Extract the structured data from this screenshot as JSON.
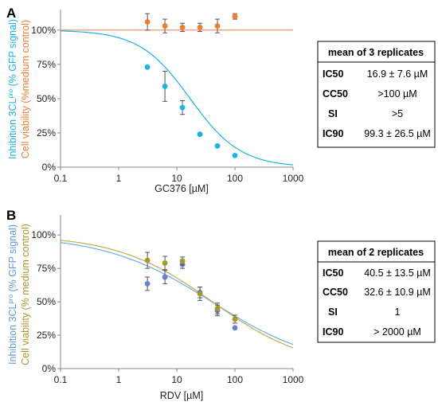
{
  "colors": {
    "inhibition_A": "#1ab4e0",
    "viability_A": "#ed7d31",
    "inhibition_B": "#6c7ed0",
    "viability_B": "#a8962b",
    "fit_B_inhibition": "#6aaee8",
    "fit_B_viability": "#bfae4a",
    "reference_line": "#f08c58",
    "error_bar": "#555555",
    "axis": "#888888"
  },
  "chart_data": [
    {
      "type": "scatter",
      "panel": "A",
      "xlabel": "GC376 [µM]",
      "ylabel_inhibition": "Inhibition 3CL",
      "ylabel_sup": "pro",
      "ylabel_inhibition_tail": " (% GFP signal)",
      "ylabel_viability": "Cell viability  (%medium control)",
      "x_scale": "log",
      "xlim": [
        0.1,
        1000
      ],
      "ylim": [
        0,
        115
      ],
      "x_ticks": [
        {
          "v": 0.1,
          "label": "0.1"
        },
        {
          "v": 1,
          "label": "1"
        },
        {
          "v": 10,
          "label": "10"
        },
        {
          "v": 100,
          "label": "100"
        },
        {
          "v": 1000,
          "label": "1000"
        }
      ],
      "y_ticks": [
        {
          "v": 0,
          "label": "0%"
        },
        {
          "v": 25,
          "label": "25%"
        },
        {
          "v": 50,
          "label": "50%"
        },
        {
          "v": 75,
          "label": "75%"
        },
        {
          "v": 100,
          "label": "100%"
        }
      ],
      "reference_line": 100,
      "fit_curves": [
        {
          "color_key": "inhibition_A",
          "top": 100,
          "bottom": 0,
          "ic50": 17,
          "hill": 1.0
        }
      ],
      "series": [
        {
          "color_key": "inhibition_A",
          "x": [
            3.125,
            6.25,
            12.5,
            25,
            50,
            100
          ],
          "y": [
            73,
            59,
            43.5,
            24,
            15.5,
            8.5
          ],
          "err": [
            0,
            11,
            5,
            0,
            0,
            0
          ]
        },
        {
          "color_key": "viability_A",
          "x": [
            3.125,
            6.25,
            12.5,
            25,
            50,
            100
          ],
          "y": [
            106,
            103,
            102,
            102,
            103,
            110
          ],
          "err": [
            6,
            5,
            3,
            3,
            5,
            2
          ]
        }
      ],
      "table": {
        "title": "mean of 3 replicates",
        "rows": [
          {
            "key": "IC50",
            "value": "16.9 ± 7.6 µM"
          },
          {
            "key": "CC50",
            "value": ">100 µM"
          },
          {
            "key": "SI",
            "value": ">5"
          },
          {
            "key": "IC90",
            "value": "99.3 ± 26.5 µM"
          }
        ]
      }
    },
    {
      "type": "scatter",
      "panel": "B",
      "xlabel": "RDV [µM]",
      "ylabel_inhibition": "Inhibition 3CL",
      "ylabel_sup": "pro",
      "ylabel_inhibition_tail": " (% GFP signal)",
      "ylabel_viability": "Cell viability  (% medium control)",
      "x_scale": "log",
      "xlim": [
        0.1,
        1000
      ],
      "ylim": [
        0,
        115
      ],
      "x_ticks": [
        {
          "v": 0.1,
          "label": "0.1"
        },
        {
          "v": 1,
          "label": "1"
        },
        {
          "v": 10,
          "label": "10"
        },
        {
          "v": 100,
          "label": "100"
        },
        {
          "v": 1000,
          "label": "1000"
        }
      ],
      "y_ticks": [
        {
          "v": 0,
          "label": "0%"
        },
        {
          "v": 25,
          "label": "25%"
        },
        {
          "v": 50,
          "label": "50%"
        },
        {
          "v": 75,
          "label": "75%"
        },
        {
          "v": 100,
          "label": "100%"
        }
      ],
      "fit_curves": [
        {
          "color_key": "fit_B_inhibition",
          "top": 100,
          "bottom": 0,
          "ic50": 40,
          "hill": 0.47
        },
        {
          "color_key": "fit_B_viability",
          "top": 100,
          "bottom": 0,
          "ic50": 41,
          "hill": 0.53
        }
      ],
      "series": [
        {
          "color_key": "inhibition_B",
          "x": [
            3.125,
            6.25,
            12.5,
            25,
            50,
            100
          ],
          "y": [
            63.5,
            68.5,
            78,
            57,
            43.5,
            30.5
          ],
          "err": [
            5,
            5,
            3,
            4,
            4,
            0
          ]
        },
        {
          "color_key": "viability_B",
          "x": [
            3.125,
            6.25,
            12.5,
            25,
            50,
            100
          ],
          "y": [
            81,
            79,
            80.5,
            56,
            45,
            37
          ],
          "err": [
            6,
            5,
            3,
            5,
            4,
            3
          ]
        }
      ],
      "table": {
        "title": "mean of 2 replicates",
        "rows": [
          {
            "key": "IC50",
            "value": "40.5 ± 13.5 µM"
          },
          {
            "key": "CC50",
            "value": "32.6 ± 10.9 µM"
          },
          {
            "key": "SI",
            "value": "1"
          },
          {
            "key": "IC90",
            "value": "> 2000 µM"
          }
        ]
      }
    }
  ]
}
